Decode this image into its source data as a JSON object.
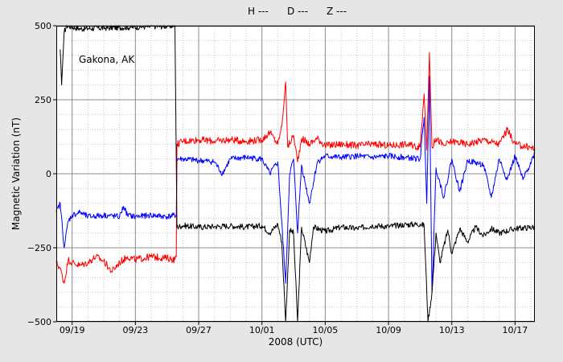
{
  "chart_data": {
    "type": "line",
    "title": "",
    "annotation": "Gakona, AK",
    "xlabel": "2008 (UTC)",
    "ylabel": "Magnetic Variation (nT)",
    "ylim": [
      -500,
      500
    ],
    "xlim": [
      "09/18 00:00",
      "10/18 06:00"
    ],
    "x_tick_labels": [
      "09/19",
      "09/23",
      "09/27",
      "10/01",
      "10/05",
      "10/09",
      "10/13",
      "10/17"
    ],
    "y_tick_labels": [
      "500",
      "250",
      "0",
      "−250",
      "−500"
    ],
    "y_ticks": [
      500,
      250,
      0,
      -250,
      -500
    ],
    "grid": true,
    "legend_placement": "top-center",
    "colors": {
      "H": "#000000",
      "D": "#ff0000",
      "Z": "#0000ff",
      "background": "#e6e6e6",
      "plot_bg": "#ffffff"
    },
    "series": [
      {
        "name": "H ---",
        "color": "#000000",
        "points": [
          [
            "09/18 06:00",
            420
          ],
          [
            "09/18 08:00",
            300
          ],
          [
            "09/18 12:00",
            480
          ],
          [
            "09/18 16:00",
            500
          ],
          [
            "09/19 12:00",
            490
          ],
          [
            "09/25 12:00",
            500
          ],
          [
            "09/25 15:00",
            -180
          ],
          [
            "09/26 00:00",
            -175
          ],
          [
            "09/27 00:00",
            -180
          ],
          [
            "09/28 00:00",
            -178
          ],
          [
            "09/29 00:00",
            -176
          ],
          [
            "09/30 00:00",
            -180
          ],
          [
            "10/01 00:00",
            -175
          ],
          [
            "10/01 12:00",
            -200
          ],
          [
            "10/02 00:00",
            -170
          ],
          [
            "10/02 06:00",
            -230
          ],
          [
            "10/02 12:00",
            -500
          ],
          [
            "10/02 18:00",
            -190
          ],
          [
            "10/03 00:00",
            -200
          ],
          [
            "10/03 06:00",
            -500
          ],
          [
            "10/03 12:00",
            -180
          ],
          [
            "10/04 00:00",
            -300
          ],
          [
            "10/04 06:00",
            -180
          ],
          [
            "10/05 00:00",
            -195
          ],
          [
            "10/06 00:00",
            -180
          ],
          [
            "10/07 00:00",
            -185
          ],
          [
            "10/08 00:00",
            -175
          ],
          [
            "10/09 00:00",
            -178
          ],
          [
            "10/10 00:00",
            -172
          ],
          [
            "10/11 00:00",
            -170
          ],
          [
            "10/11 06:00",
            -175
          ],
          [
            "10/11 12:00",
            -500
          ],
          [
            "10/11 18:00",
            -400
          ],
          [
            "10/12 00:00",
            -200
          ],
          [
            "10/12 06:00",
            -300
          ],
          [
            "10/12 18:00",
            -190
          ],
          [
            "10/13 00:00",
            -270
          ],
          [
            "10/13 12:00",
            -185
          ],
          [
            "10/14 00:00",
            -230
          ],
          [
            "10/14 12:00",
            -180
          ],
          [
            "10/15 00:00",
            -210
          ],
          [
            "10/15 12:00",
            -185
          ],
          [
            "10/16 00:00",
            -200
          ],
          [
            "10/17 00:00",
            -185
          ],
          [
            "10/18 06:00",
            -180
          ]
        ]
      },
      {
        "name": "D ---",
        "color": "#ff0000",
        "points": [
          [
            "09/18 00:00",
            -300
          ],
          [
            "09/18 06:00",
            -320
          ],
          [
            "09/18 12:00",
            -370
          ],
          [
            "09/18 18:00",
            -290
          ],
          [
            "09/19 00:00",
            -300
          ],
          [
            "09/19 12:00",
            -310
          ],
          [
            "09/20 00:00",
            -300
          ],
          [
            "09/20 12:00",
            -280
          ],
          [
            "09/21 00:00",
            -295
          ],
          [
            "09/21 12:00",
            -330
          ],
          [
            "09/22 00:00",
            -300
          ],
          [
            "09/22 12:00",
            -280
          ],
          [
            "09/23 00:00",
            -290
          ],
          [
            "09/24 00:00",
            -280
          ],
          [
            "09/25 00:00",
            -285
          ],
          [
            "09/25 12:00",
            -290
          ],
          [
            "09/25 14:00",
            -280
          ],
          [
            "09/25 15:00",
            100
          ],
          [
            "09/26 00:00",
            110
          ],
          [
            "09/27 00:00",
            115
          ],
          [
            "09/28 00:00",
            110
          ],
          [
            "09/29 00:00",
            115
          ],
          [
            "09/30 00:00",
            110
          ],
          [
            "10/01 00:00",
            115
          ],
          [
            "10/01 12:00",
            140
          ],
          [
            "10/02 00:00",
            100
          ],
          [
            "10/02 06:00",
            160
          ],
          [
            "10/02 12:00",
            310
          ],
          [
            "10/02 15:00",
            90
          ],
          [
            "10/03 00:00",
            130
          ],
          [
            "10/03 06:00",
            40
          ],
          [
            "10/03 12:00",
            120
          ],
          [
            "10/04 00:00",
            100
          ],
          [
            "10/04 12:00",
            120
          ],
          [
            "10/05 00:00",
            95
          ],
          [
            "10/06 00:00",
            100
          ],
          [
            "10/07 00:00",
            95
          ],
          [
            "10/08 00:00",
            100
          ],
          [
            "10/09 00:00",
            95
          ],
          [
            "10/10 00:00",
            100
          ],
          [
            "10/11 00:00",
            90
          ],
          [
            "10/11 06:00",
            270
          ],
          [
            "10/11 10:00",
            80
          ],
          [
            "10/11 14:00",
            410
          ],
          [
            "10/11 18:00",
            90
          ],
          [
            "10/12 00:00",
            120
          ],
          [
            "10/12 12:00",
            95
          ],
          [
            "10/13 00:00",
            110
          ],
          [
            "10/14 00:00",
            100
          ],
          [
            "10/15 00:00",
            115
          ],
          [
            "10/16 00:00",
            100
          ],
          [
            "10/16 12:00",
            150
          ],
          [
            "10/17 00:00",
            100
          ],
          [
            "10/18 06:00",
            85
          ]
        ]
      },
      {
        "name": "Z ---",
        "color": "#0000ff",
        "points": [
          [
            "09/18 00:00",
            -130
          ],
          [
            "09/18 06:00",
            -100
          ],
          [
            "09/18 12:00",
            -250
          ],
          [
            "09/18 18:00",
            -160
          ],
          [
            "09/19 00:00",
            -140
          ],
          [
            "09/19 12:00",
            -130
          ],
          [
            "09/20 00:00",
            -145
          ],
          [
            "09/21 00:00",
            -140
          ],
          [
            "09/22 00:00",
            -145
          ],
          [
            "09/22 06:00",
            -110
          ],
          [
            "09/22 12:00",
            -140
          ],
          [
            "09/23 00:00",
            -145
          ],
          [
            "09/24 00:00",
            -140
          ],
          [
            "09/25 00:00",
            -145
          ],
          [
            "09/25 14:00",
            -140
          ],
          [
            "09/25 15:00",
            50
          ],
          [
            "09/26 00:00",
            50
          ],
          [
            "09/27 00:00",
            45
          ],
          [
            "09/28 00:00",
            40
          ],
          [
            "09/28 12:00",
            0
          ],
          [
            "09/29 00:00",
            50
          ],
          [
            "09/30 00:00",
            55
          ],
          [
            "10/01 00:00",
            50
          ],
          [
            "10/01 12:00",
            0
          ],
          [
            "10/02 00:00",
            40
          ],
          [
            "10/02 12:00",
            -370
          ],
          [
            "10/02 18:00",
            0
          ],
          [
            "10/03 00:00",
            50
          ],
          [
            "10/03 06:00",
            -200
          ],
          [
            "10/03 12:00",
            30
          ],
          [
            "10/04 00:00",
            -100
          ],
          [
            "10/04 12:00",
            40
          ],
          [
            "10/05 00:00",
            60
          ],
          [
            "10/06 00:00",
            55
          ],
          [
            "10/07 00:00",
            60
          ],
          [
            "10/08 00:00",
            55
          ],
          [
            "10/09 00:00",
            60
          ],
          [
            "10/10 00:00",
            55
          ],
          [
            "10/11 00:00",
            50
          ],
          [
            "10/11 06:00",
            190
          ],
          [
            "10/11 10:00",
            -100
          ],
          [
            "10/11 14:00",
            330
          ],
          [
            "10/11 18:00",
            -400
          ],
          [
            "10/12 00:00",
            20
          ],
          [
            "10/12 12:00",
            -80
          ],
          [
            "10/13 00:00",
            50
          ],
          [
            "10/13 12:00",
            -60
          ],
          [
            "10/14 00:00",
            45
          ],
          [
            "10/15 00:00",
            30
          ],
          [
            "10/15 12:00",
            -80
          ],
          [
            "10/16 00:00",
            50
          ],
          [
            "10/16 12:00",
            -20
          ],
          [
            "10/17 00:00",
            60
          ],
          [
            "10/17 12:00",
            -20
          ],
          [
            "10/18 06:00",
            70
          ]
        ]
      }
    ]
  }
}
